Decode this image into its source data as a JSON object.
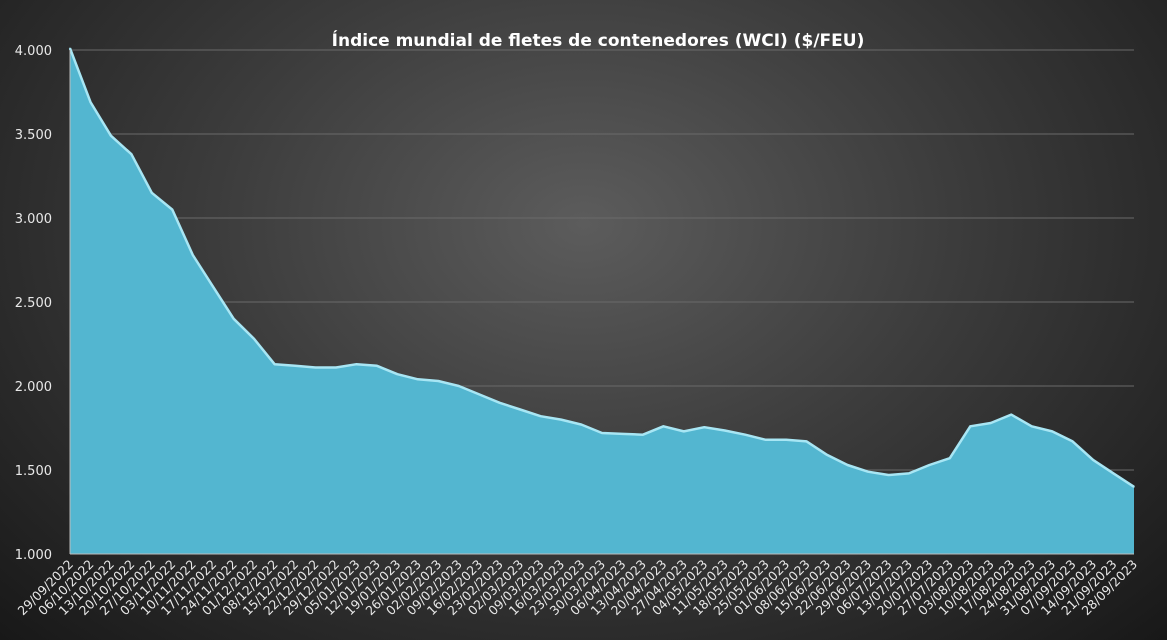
{
  "chart_data": {
    "type": "area",
    "title": "Índice mundial de fletes de contenedores (WCI) ($/FEU)",
    "xlabel": "",
    "ylabel": "",
    "ylim": [
      1000,
      4000
    ],
    "yticks": [
      1000,
      1500,
      2000,
      2500,
      3000,
      3500,
      4000
    ],
    "ytick_labels": [
      "1.000",
      "1.500",
      "2.000",
      "2.500",
      "3.000",
      "3.500",
      "4.000"
    ],
    "grid": true,
    "legend": "none",
    "color": "#53b6d0",
    "x": [
      "29/09/2022",
      "06/10/2022",
      "13/10/2022",
      "20/10/2022",
      "27/10/2022",
      "03/11/2022",
      "10/11/2022",
      "17/11/2022",
      "24/11/2022",
      "01/12/2022",
      "08/12/2022",
      "15/12/2022",
      "22/12/2022",
      "29/12/2022",
      "05/01/2023",
      "12/01/2023",
      "19/01/2023",
      "26/01/2023",
      "02/02/2023",
      "09/02/2023",
      "16/02/2023",
      "23/02/2023",
      "02/03/2023",
      "09/03/2023",
      "16/03/2023",
      "23/03/2023",
      "30/03/2023",
      "06/04/2023",
      "13/04/2023",
      "20/04/2023",
      "27/04/2023",
      "04/05/2023",
      "11/05/2023",
      "18/05/2023",
      "25/05/2023",
      "01/06/2023",
      "08/06/2023",
      "15/06/2023",
      "22/06/2023",
      "29/06/2023",
      "06/07/2023",
      "13/07/2023",
      "20/07/2023",
      "27/07/2023",
      "03/08/2023",
      "10/08/2023",
      "17/08/2023",
      "24/08/2023",
      "31/08/2023",
      "07/09/2023",
      "14/09/2023",
      "21/09/2023",
      "28/09/2023"
    ],
    "series": [
      {
        "values": [
          4010,
          3690,
          3490,
          3380,
          3150,
          3050,
          2780,
          2590,
          2400,
          2280,
          2130,
          2120,
          2110,
          2110,
          2130,
          2120,
          2070,
          2040,
          2030,
          2000,
          1950,
          1900,
          1860,
          1820,
          1800,
          1770,
          1720,
          1715,
          1710,
          1760,
          1730,
          1755,
          1735,
          1710,
          1680,
          1680,
          1670,
          1590,
          1530,
          1490,
          1470,
          1480,
          1530,
          1570,
          1760,
          1780,
          1830,
          1760,
          1730,
          1670,
          1560,
          1480,
          1400
        ]
      }
    ]
  }
}
